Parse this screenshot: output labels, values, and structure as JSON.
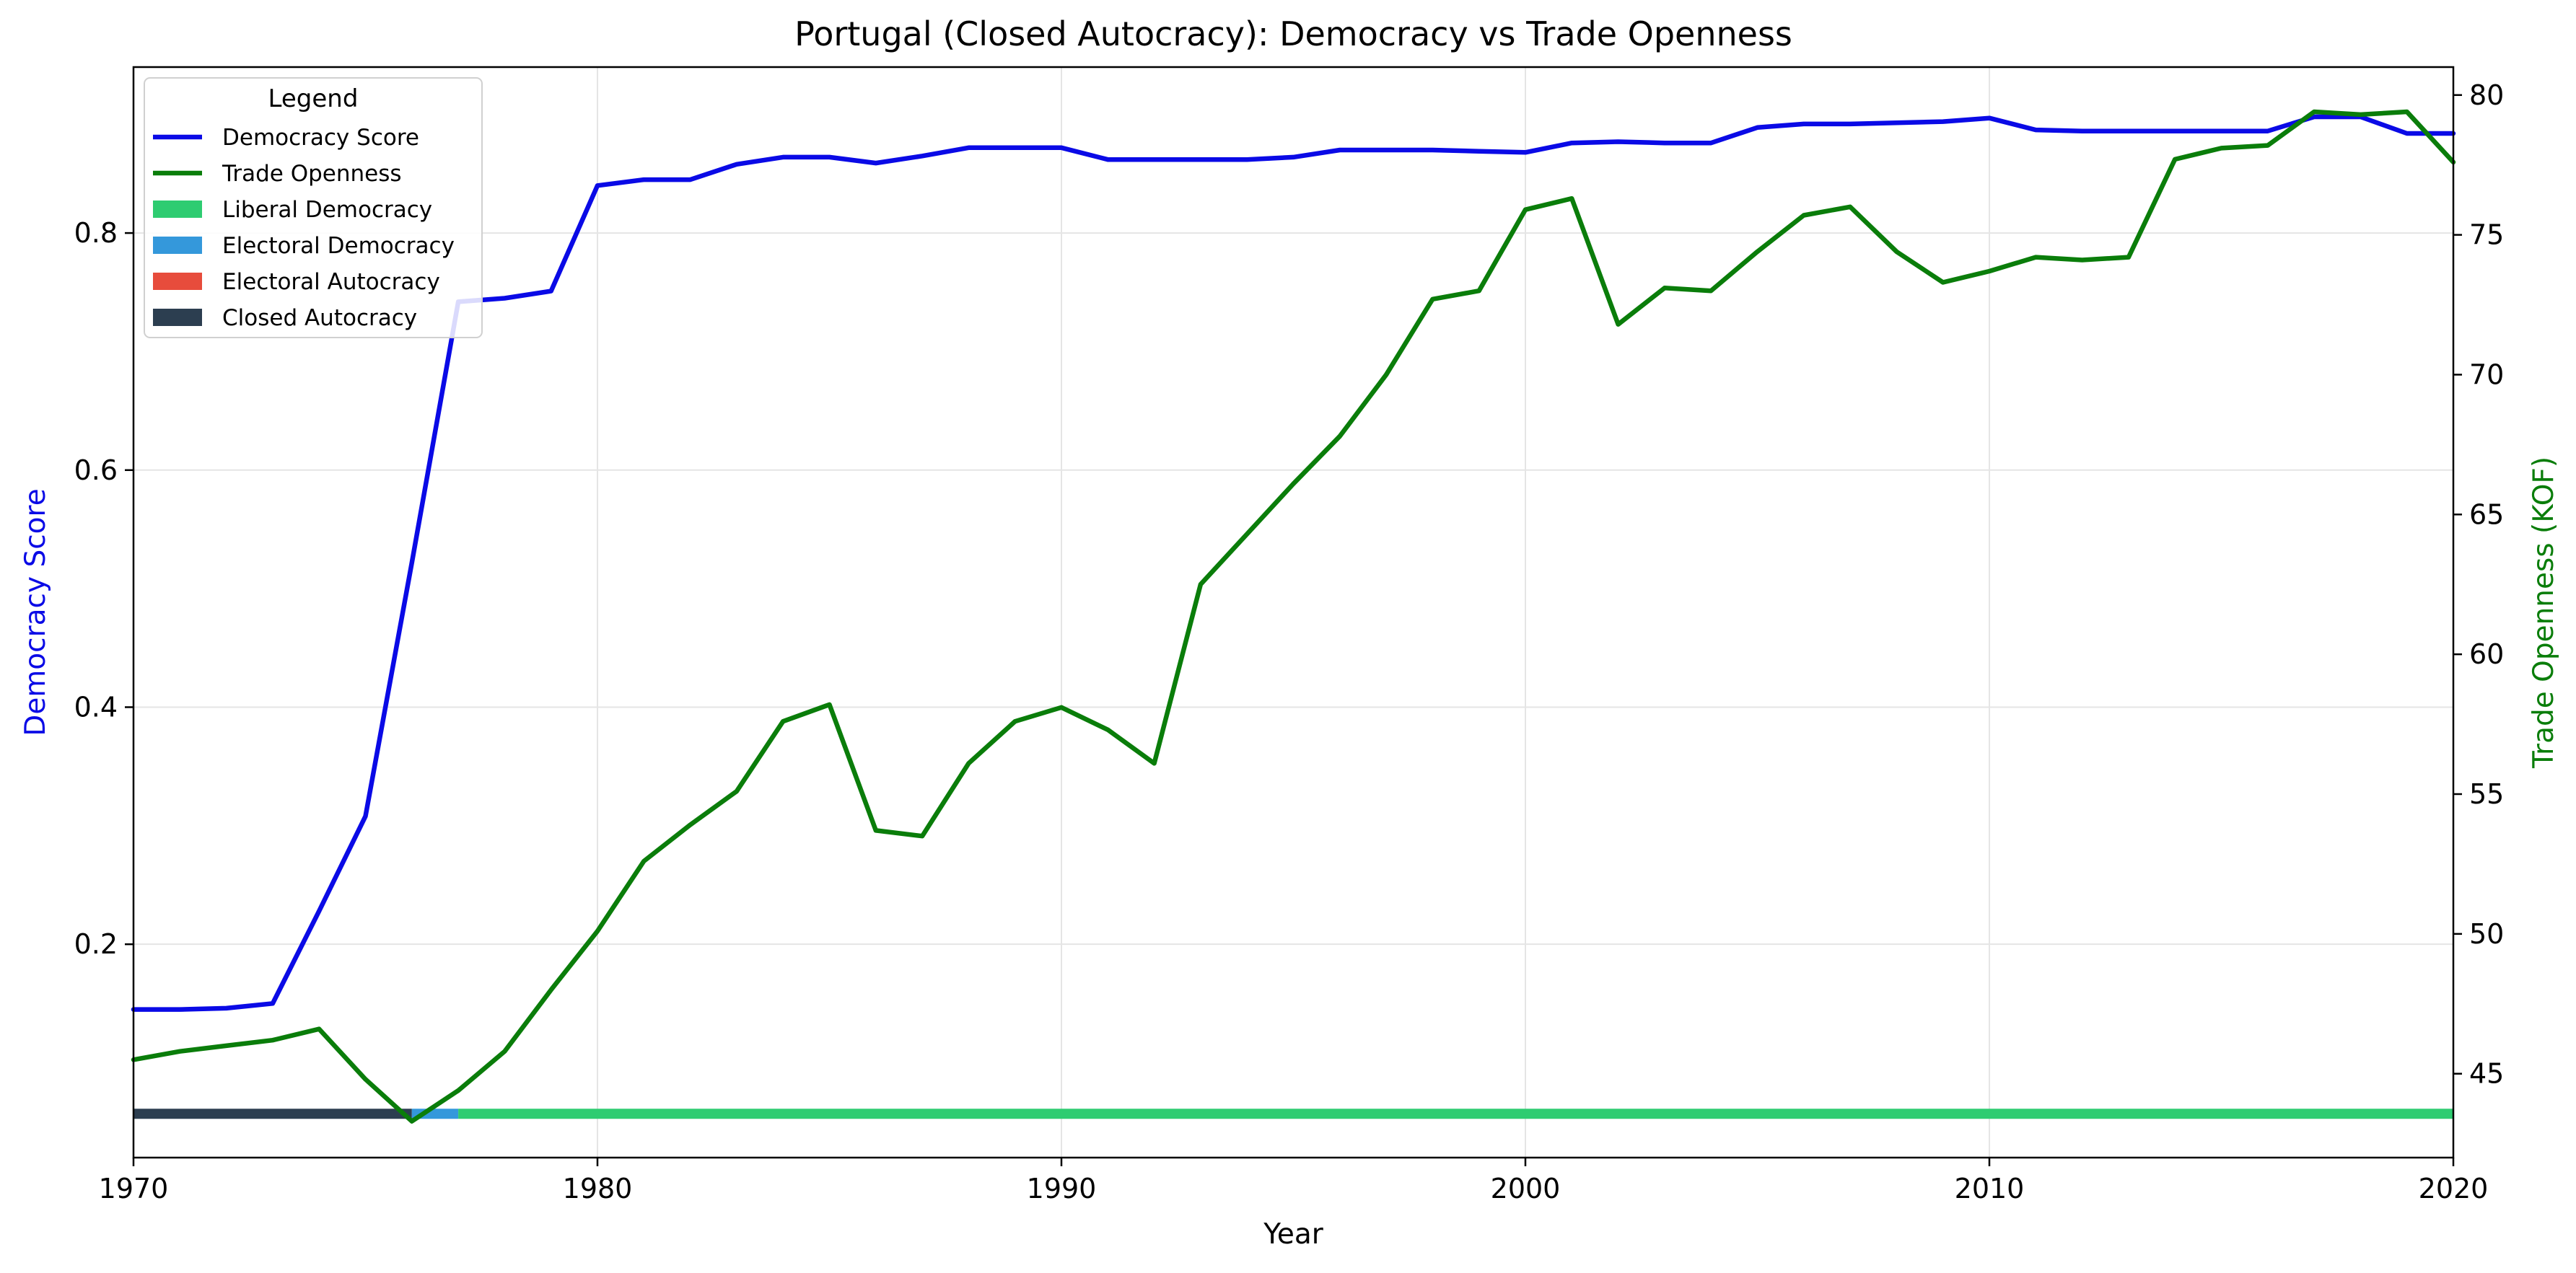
{
  "chart_data": {
    "type": "line",
    "title": "Portugal (Closed Autocracy): Democracy vs Trade Openness",
    "xlabel": "Year",
    "ylabel_left": "Democracy Score",
    "ylabel_right": "Trade Openness (KOF)",
    "xlim": [
      1970,
      2020
    ],
    "ylim_left": [
      0.02,
      0.94
    ],
    "ylim_right": [
      42,
      81
    ],
    "x_ticks": [
      1970,
      1980,
      1990,
      2000,
      2010,
      2020
    ],
    "y_ticks_left": [
      0.2,
      0.4,
      0.6,
      0.8
    ],
    "y_ticks_right": [
      45,
      50,
      55,
      60,
      65,
      70,
      75,
      80
    ],
    "grid": true,
    "legend": {
      "title": "Legend",
      "position": "top-left",
      "entries": [
        {
          "label": "Democracy Score",
          "color": "#0a0ae6",
          "kind": "line"
        },
        {
          "label": "Trade Openness",
          "color": "#0a7d0a",
          "kind": "line"
        },
        {
          "label": "Liberal Democracy",
          "color": "#2ecc71",
          "kind": "patch"
        },
        {
          "label": "Electoral Democracy",
          "color": "#3498db",
          "kind": "patch"
        },
        {
          "label": "Electoral Autocracy",
          "color": "#e74c3c",
          "kind": "patch"
        },
        {
          "label": "Closed Autocracy",
          "color": "#2c3e50",
          "kind": "patch"
        }
      ]
    },
    "x": [
      1970,
      1971,
      1972,
      1973,
      1974,
      1975,
      1976,
      1977,
      1978,
      1979,
      1980,
      1981,
      1982,
      1983,
      1984,
      1985,
      1986,
      1987,
      1988,
      1989,
      1990,
      1991,
      1992,
      1993,
      1994,
      1995,
      1996,
      1997,
      1998,
      1999,
      2000,
      2001,
      2002,
      2003,
      2004,
      2005,
      2006,
      2007,
      2008,
      2009,
      2010,
      2011,
      2012,
      2013,
      2014,
      2015,
      2016,
      2017,
      2018,
      2019,
      2020
    ],
    "series": [
      {
        "name": "Democracy Score",
        "axis": "left",
        "color": "#0a0ae6",
        "values": [
          0.145,
          0.145,
          0.146,
          0.15,
          0.228,
          0.308,
          0.522,
          0.742,
          0.745,
          0.751,
          0.84,
          0.845,
          0.845,
          0.858,
          0.864,
          0.864,
          0.859,
          0.865,
          0.872,
          0.872,
          0.872,
          0.862,
          0.862,
          0.862,
          0.862,
          0.864,
          0.87,
          0.87,
          0.87,
          0.869,
          0.868,
          0.876,
          0.877,
          0.876,
          0.876,
          0.889,
          0.892,
          0.892,
          0.893,
          0.894,
          0.897,
          0.887,
          0.886,
          0.886,
          0.886,
          0.886,
          0.886,
          0.898,
          0.898,
          0.884,
          0.884
        ]
      },
      {
        "name": "Trade Openness",
        "axis": "right",
        "color": "#0a7d0a",
        "values": [
          45.5,
          45.8,
          46.0,
          46.2,
          46.6,
          44.8,
          43.3,
          44.4,
          45.8,
          48.0,
          50.1,
          52.6,
          53.9,
          55.1,
          57.6,
          58.2,
          53.7,
          53.5,
          56.1,
          57.6,
          58.1,
          57.3,
          56.1,
          62.5,
          64.3,
          66.1,
          67.8,
          70.0,
          72.7,
          73.0,
          75.9,
          76.3,
          71.8,
          73.1,
          73.0,
          74.4,
          75.7,
          76.0,
          74.4,
          73.3,
          73.7,
          74.2,
          74.1,
          74.2,
          77.7,
          78.1,
          78.2,
          79.4,
          79.3,
          79.4,
          77.6
        ]
      }
    ],
    "regime_bar": {
      "level": 0.057,
      "segments": [
        {
          "regime": "Closed Autocracy",
          "start": 1970,
          "end": 1976,
          "color": "#2c3e50"
        },
        {
          "regime": "Electoral Democracy",
          "start": 1976,
          "end": 1977,
          "color": "#3498db"
        },
        {
          "regime": "Liberal Democracy",
          "start": 1977,
          "end": 2020,
          "color": "#2ecc71"
        }
      ]
    }
  }
}
